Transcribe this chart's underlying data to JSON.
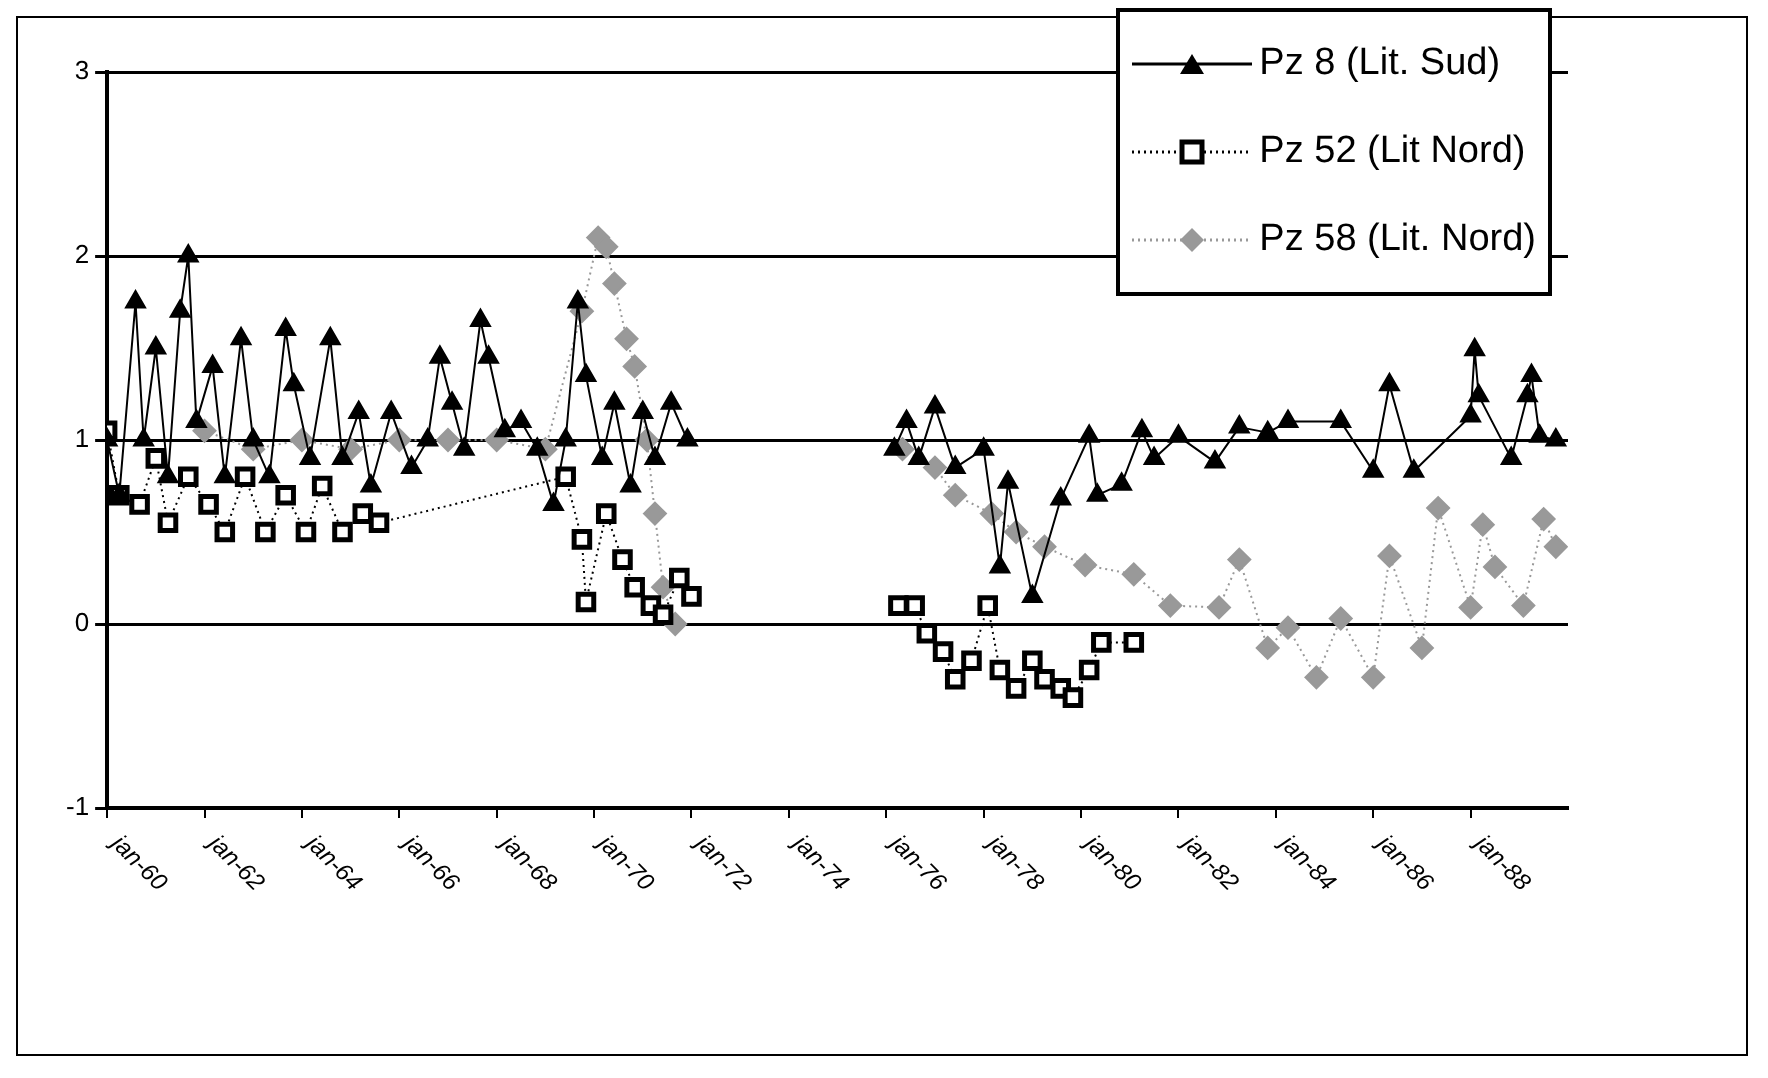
{
  "chart_data": {
    "type": "line",
    "xlim": [
      "1960-01",
      "1990-01"
    ],
    "ylim": [
      -1,
      3
    ],
    "yticks": [
      -1,
      0,
      1,
      2,
      3
    ],
    "xticks": [
      {
        "value": "1960-01",
        "label": "jan-60"
      },
      {
        "value": "1962-01",
        "label": "jan-62"
      },
      {
        "value": "1964-01",
        "label": "jan-64"
      },
      {
        "value": "1966-01",
        "label": "jan-66"
      },
      {
        "value": "1968-01",
        "label": "jan-68"
      },
      {
        "value": "1970-01",
        "label": "jan-70"
      },
      {
        "value": "1972-01",
        "label": "jan-72"
      },
      {
        "value": "1974-01",
        "label": "jan-74"
      },
      {
        "value": "1976-01",
        "label": "jan-76"
      },
      {
        "value": "1978-01",
        "label": "jan-78"
      },
      {
        "value": "1980-01",
        "label": "jan-80"
      },
      {
        "value": "1982-01",
        "label": "jan-82"
      },
      {
        "value": "1984-01",
        "label": "jan-84"
      },
      {
        "value": "1986-01",
        "label": "jan-86"
      },
      {
        "value": "1988-01",
        "label": "jan-88"
      }
    ],
    "grid": "y",
    "legend": "top right",
    "series": [
      {
        "name": "Pz 8 (Lit. Sud)",
        "color": "#000000",
        "marker": "triangle",
        "line_style": "solid",
        "x": [
          "1960-01",
          "1960-04",
          "1960-08",
          "1960-10",
          "1961-01",
          "1961-04",
          "1961-07",
          "1961-09",
          "1961-11",
          "1962-03",
          "1962-06",
          "1962-10",
          "1963-01",
          "1963-05",
          "1963-09",
          "1963-11",
          "1964-03",
          "1964-08",
          "1964-11",
          "1965-03",
          "1965-06",
          "1965-11",
          "1966-04",
          "1966-08",
          "1966-11",
          "1967-02",
          "1967-05",
          "1967-09",
          "1967-11",
          "1968-03",
          "1968-07",
          "1968-11",
          "1969-03",
          "1969-06",
          "1969-09",
          "1969-11",
          "1970-03",
          "1970-06",
          "1970-10",
          "1971-01",
          "1971-04",
          "1971-08",
          "1971-12",
          "1974-01",
          "1976-03",
          "1976-06",
          "1976-09",
          "1977-01",
          "1977-06",
          "1978-01",
          "1978-05",
          "1978-07",
          "1979-01",
          "1979-08",
          "1980-03",
          "1980-05",
          "1980-11",
          "1981-04",
          "1981-07",
          "1982-01",
          "1982-10",
          "1983-04",
          "1983-11",
          "1984-04",
          "1985-05",
          "1986-01",
          "1986-05",
          "1986-11",
          "1988-01",
          "1988-02",
          "1988-03",
          "1988-11",
          "1989-03",
          "1989-04",
          "1989-06",
          "1989-10"
        ],
        "values": [
          1.0,
          0.7,
          1.75,
          1.0,
          1.5,
          0.8,
          1.7,
          2.0,
          1.1,
          1.4,
          0.8,
          1.55,
          1.0,
          0.8,
          1.6,
          1.3,
          0.9,
          1.55,
          0.9,
          1.15,
          0.75,
          1.15,
          0.85,
          1.0,
          1.45,
          1.2,
          0.95,
          1.65,
          1.45,
          1.05,
          1.1,
          0.95,
          0.65,
          1.0,
          1.75,
          1.35,
          0.9,
          1.2,
          0.75,
          1.15,
          0.9,
          1.2,
          1.0,
          null,
          0.95,
          1.1,
          0.9,
          1.18,
          0.85,
          0.95,
          0.31,
          0.77,
          0.15,
          0.68,
          1.02,
          0.7,
          0.76,
          1.05,
          0.9,
          1.02,
          0.88,
          1.07,
          1.04,
          1.1,
          1.1,
          0.83,
          1.3,
          0.83,
          1.13,
          1.49,
          1.24,
          0.9,
          1.24,
          1.35,
          1.02,
          1.0
        ]
      },
      {
        "name": "Pz 52 (Lit Nord)",
        "color": "#000000",
        "marker": "square",
        "line_style": "dotted",
        "x": [
          "1960-01",
          "1960-04",
          "1960-09",
          "1961-01",
          "1961-04",
          "1961-09",
          "1962-02",
          "1962-06",
          "1962-11",
          "1963-04",
          "1963-09",
          "1964-02",
          "1964-06",
          "1964-11",
          "1965-04",
          "1965-08",
          "1969-06",
          "1969-10",
          "1969-11",
          "1970-04",
          "1970-08",
          "1970-11",
          "1971-03",
          "1971-06",
          "1971-10",
          "1972-01",
          "1974-01",
          "1976-04",
          "1976-08",
          "1976-11",
          "1977-03",
          "1977-06",
          "1977-10",
          "1978-02",
          "1978-05",
          "1978-09",
          "1979-01",
          "1979-04",
          "1979-08",
          "1979-11",
          "1980-03",
          "1980-06",
          "1981-02"
        ],
        "values": [
          1.05,
          0.7,
          0.65,
          0.9,
          0.55,
          0.8,
          0.65,
          0.5,
          0.8,
          0.5,
          0.7,
          0.5,
          0.75,
          0.5,
          0.6,
          0.55,
          0.8,
          0.46,
          0.12,
          0.6,
          0.35,
          0.2,
          0.1,
          0.05,
          0.25,
          0.15,
          null,
          0.1,
          0.1,
          -0.05,
          -0.15,
          -0.3,
          -0.2,
          0.1,
          -0.25,
          -0.35,
          -0.2,
          -0.3,
          -0.35,
          -0.4,
          -0.25,
          -0.1,
          -0.1
        ]
      },
      {
        "name": "Pz 58 (Lit. Nord)",
        "color": "#999999",
        "marker": "diamond",
        "line_style": "dotted",
        "x": [
          "1962-01",
          "1963-01",
          "1964-01",
          "1965-01",
          "1966-01",
          "1967-01",
          "1968-01",
          "1969-01",
          "1969-10",
          "1970-02",
          "1970-04",
          "1970-06",
          "1970-09",
          "1970-11",
          "1971-02",
          "1971-04",
          "1971-06",
          "1971-09",
          "1974-01",
          "1976-05",
          "1977-01",
          "1977-06",
          "1978-03",
          "1978-09",
          "1979-04",
          "1980-02",
          "1981-02",
          "1981-11",
          "1982-11",
          "1983-04",
          "1983-11",
          "1984-04",
          "1984-11",
          "1985-05",
          "1986-01",
          "1986-05",
          "1987-01",
          "1987-05",
          "1988-01",
          "1988-04",
          "1988-07",
          "1989-02",
          "1989-07",
          "1989-10"
        ],
        "values": [
          1.05,
          0.95,
          1.0,
          0.95,
          1.0,
          1.0,
          1.0,
          0.95,
          1.7,
          2.1,
          2.05,
          1.85,
          1.55,
          1.4,
          1.0,
          0.6,
          0.2,
          0.0,
          null,
          0.95,
          0.85,
          0.7,
          0.6,
          0.5,
          0.42,
          0.32,
          0.27,
          0.1,
          0.09,
          0.35,
          -0.13,
          -0.02,
          -0.29,
          0.03,
          -0.29,
          0.37,
          -0.13,
          0.63,
          0.09,
          0.54,
          0.31,
          0.1,
          0.57,
          0.42
        ]
      }
    ]
  }
}
